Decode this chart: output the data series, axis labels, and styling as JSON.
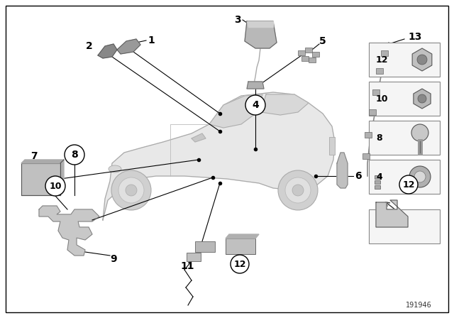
{
  "bg_color": "#ffffff",
  "border_color": "#000000",
  "fig_width": 6.4,
  "fig_height": 4.48,
  "dpi": 100,
  "footer_number": "191946",
  "footer_fontsize": 7,
  "line_color": "#000000",
  "lw": 0.8
}
